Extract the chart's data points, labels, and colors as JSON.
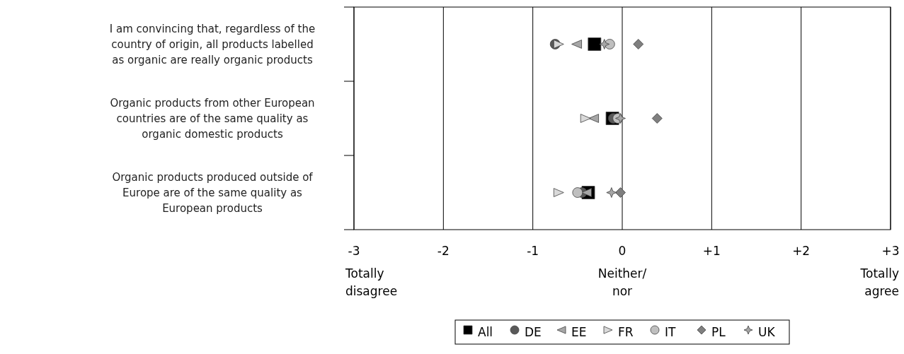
{
  "chart_data": {
    "type": "scatter",
    "orientation": "horizontal",
    "categories": [
      "I am convincing that, regardless of the country of origin, all products labelled as organic are really organic products",
      "Organic products from other European countries are of the same quality as organic domestic products",
      "Organic products produced outside of Europe are of the same quality as European products"
    ],
    "xlim": [
      -3,
      3
    ],
    "xticks": [
      -3,
      -2,
      -1,
      0,
      {
        "value": 1,
        "label": "+1"
      },
      {
        "value": 2,
        "label": "+2"
      },
      {
        "value": 3,
        "label": "+3"
      }
    ],
    "grid": "x",
    "legend": "bottom",
    "annotations": [
      "Totally\ndisagree",
      "Neither/\nnor",
      "Totally\nagree"
    ],
    "series": [
      {
        "name": "All",
        "color": "#000000",
        "marker": "square",
        "values": [
          -0.31,
          -0.11,
          -0.38
        ]
      },
      {
        "name": "DE",
        "color": "#595959",
        "marker": "circle",
        "values": [
          -0.75,
          -0.1,
          -0.45
        ]
      },
      {
        "name": "EE",
        "color": "#a6a6a6",
        "marker": "triangle-left",
        "values": [
          -0.51,
          -0.32,
          -0.4
        ]
      },
      {
        "name": "FR",
        "color": "#d9d9d9",
        "marker": "triangle-right",
        "values": [
          -0.71,
          -0.41,
          -0.71
        ]
      },
      {
        "name": "IT",
        "color": "#bfbfbf",
        "marker": "circle",
        "values": [
          -0.14,
          -0.05,
          -0.5
        ]
      },
      {
        "name": "PL",
        "color": "#7f7f7f",
        "marker": "diamond",
        "values": [
          0.18,
          0.39,
          -0.02
        ]
      },
      {
        "name": "UK",
        "color": "#a6a6a6",
        "marker": "star",
        "values": [
          -0.2,
          -0.02,
          -0.12
        ]
      }
    ]
  }
}
